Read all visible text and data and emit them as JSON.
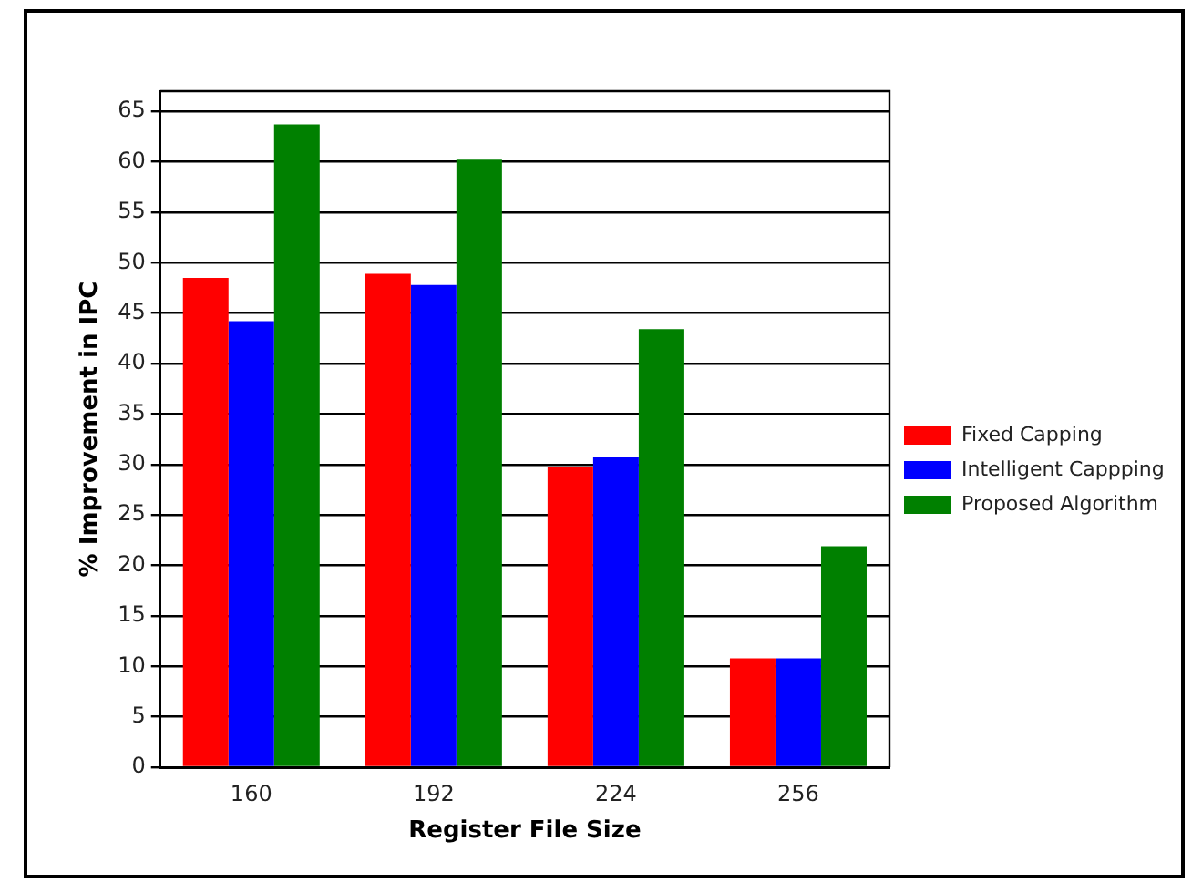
{
  "chart_data": {
    "type": "bar",
    "xlabel": "Register File Size",
    "ylabel": "% Improvement in IPC",
    "categories": [
      "160",
      "192",
      "224",
      "256"
    ],
    "series": [
      {
        "name": "Fixed Capping",
        "color": "#ff0000",
        "values": [
          48.5,
          48.9,
          29.7,
          10.8
        ]
      },
      {
        "name": "Intelligent Cappping",
        "color": "#0000ff",
        "values": [
          44.2,
          47.8,
          30.7,
          10.8
        ]
      },
      {
        "name": "Proposed Algorithm",
        "color": "#008000",
        "values": [
          63.7,
          60.2,
          43.4,
          21.9
        ]
      }
    ],
    "ylim": [
      0,
      67
    ],
    "yticks": [
      0,
      5,
      10,
      15,
      20,
      25,
      30,
      35,
      40,
      45,
      50,
      55,
      60,
      65
    ],
    "grid": "y",
    "legend": "right"
  }
}
